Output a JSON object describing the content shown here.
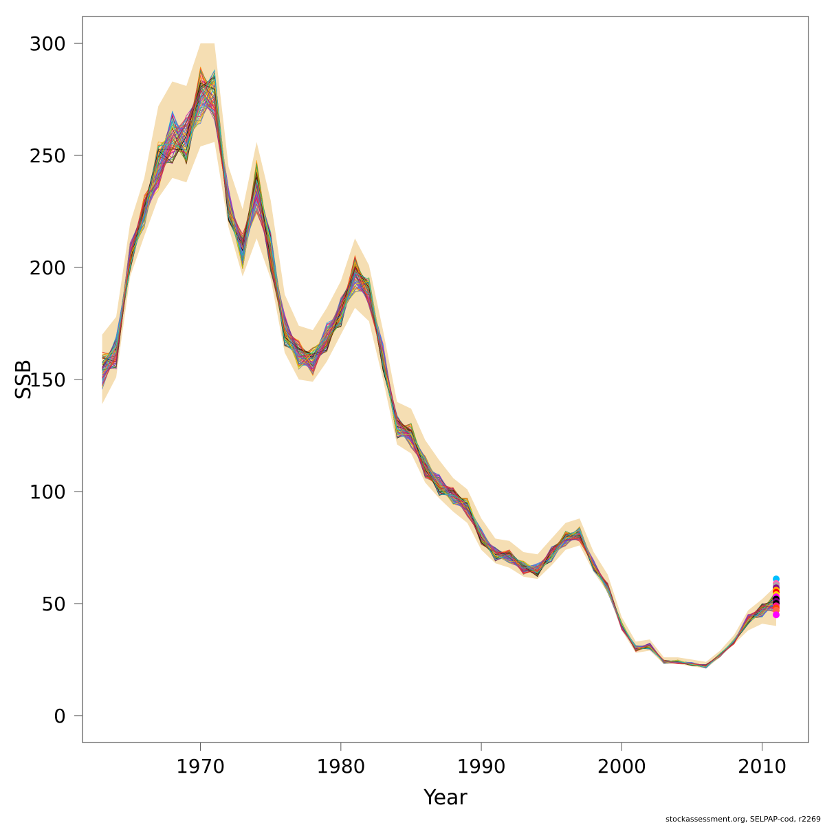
{
  "credit": "stockassessment.org, SELPAP-cod, r2269",
  "chart_data": {
    "type": "line",
    "title": "",
    "xlabel": "Year",
    "ylabel": "SSB",
    "xlim": [
      1961.6,
      2013.3
    ],
    "ylim": [
      -12,
      312
    ],
    "xticks": [
      1970,
      1980,
      1990,
      2000,
      2010
    ],
    "yticks": [
      0,
      50,
      100,
      150,
      200,
      250,
      300
    ],
    "grid": false,
    "legend": "none",
    "band_color": "#f5deb3",
    "x": [
      1963,
      1964,
      1965,
      1966,
      1967,
      1968,
      1969,
      1970,
      1971,
      1972,
      1973,
      1974,
      1975,
      1976,
      1977,
      1978,
      1979,
      1980,
      1981,
      1982,
      1983,
      1984,
      1985,
      1986,
      1987,
      1988,
      1989,
      1990,
      1991,
      1992,
      1993,
      1994,
      1995,
      1996,
      1997,
      1998,
      1999,
      2000,
      2001,
      2002,
      2003,
      2004,
      2005,
      2006,
      2007,
      2008,
      2009,
      2010,
      2011
    ],
    "ssb_central": [
      154,
      162,
      205,
      225,
      245,
      258,
      257,
      277,
      277,
      228,
      207,
      236,
      207,
      172,
      161,
      158,
      169,
      180,
      197,
      189,
      160,
      129,
      125,
      111,
      103,
      98,
      93,
      80,
      72,
      71,
      66,
      65,
      72,
      79,
      81,
      67,
      57,
      40,
      30,
      31,
      24,
      24,
      23,
      22,
      27,
      33,
      43,
      47,
      51
    ],
    "band_lower": [
      139,
      151,
      196,
      214,
      231,
      240,
      238,
      254,
      256,
      218,
      196,
      213,
      195,
      162,
      150,
      149,
      158,
      170,
      182,
      176,
      150,
      121,
      117,
      104,
      97,
      91,
      86,
      74,
      68,
      66,
      62,
      61,
      67,
      74,
      76,
      64,
      55,
      38,
      28,
      29,
      23,
      23,
      22,
      21,
      26,
      32,
      38,
      41,
      40
    ],
    "band_upper": [
      170,
      178,
      220,
      240,
      272,
      283,
      281,
      300,
      300,
      245,
      226,
      256,
      230,
      188,
      174,
      172,
      182,
      194,
      213,
      201,
      172,
      140,
      137,
      123,
      114,
      106,
      101,
      88,
      79,
      78,
      73,
      72,
      79,
      86,
      88,
      73,
      63,
      44,
      33,
      34,
      26,
      26,
      25,
      24,
      29,
      36,
      47,
      52,
      58
    ],
    "n_runs": 60,
    "run_colors": [
      "#000000",
      "#e6194b",
      "#c71585",
      "#ffa500",
      "#1e90ff",
      "#3cb44b",
      "#911eb4",
      "#ffd700",
      "#8b4513",
      "#808080",
      "#00ced1",
      "#dc143c",
      "#ff1493",
      "#ff8c00",
      "#228b22",
      "#4169e1"
    ],
    "endpoints": [
      {
        "x": 2011,
        "y": 61,
        "color": "#00bfff"
      },
      {
        "x": 2011,
        "y": 59,
        "color": "#ff69b4"
      },
      {
        "x": 2011,
        "y": 58,
        "color": "#a9a9a9"
      },
      {
        "x": 2011,
        "y": 57,
        "color": "#8b008b"
      },
      {
        "x": 2011,
        "y": 56,
        "color": "#ffa500"
      },
      {
        "x": 2011,
        "y": 55,
        "color": "#ff0000"
      },
      {
        "x": 2011,
        "y": 54,
        "color": "#ffd700"
      },
      {
        "x": 2011,
        "y": 53,
        "color": "#ff00ff"
      },
      {
        "x": 2011,
        "y": 52,
        "color": "#000000"
      },
      {
        "x": 2011,
        "y": 51,
        "color": "#800080"
      },
      {
        "x": 2011,
        "y": 50,
        "color": "#000000"
      },
      {
        "x": 2011,
        "y": 49,
        "color": "#ff1493"
      },
      {
        "x": 2011,
        "y": 48,
        "color": "#ff4500"
      },
      {
        "x": 2011,
        "y": 47,
        "color": "#ff6347"
      },
      {
        "x": 2011,
        "y": 45,
        "color": "#ff00ff"
      }
    ]
  }
}
